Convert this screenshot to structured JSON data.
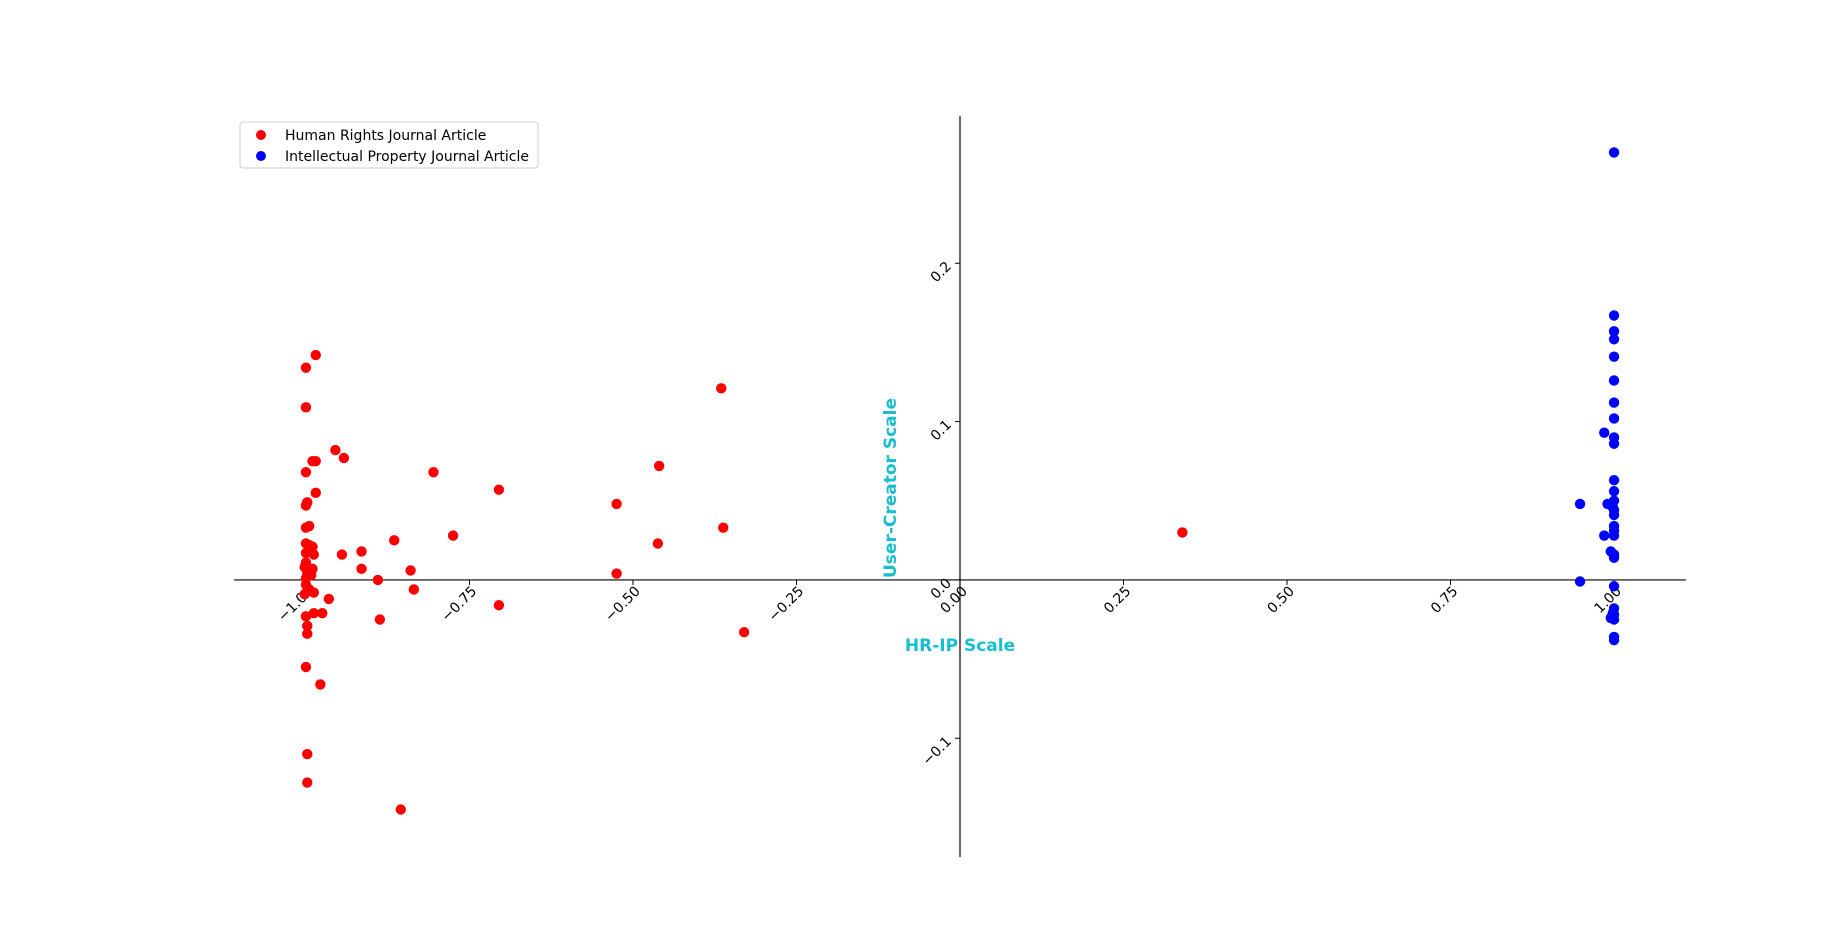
{
  "chart_data": {
    "type": "scatter",
    "title": "",
    "xlabel": "HR-IP Scale",
    "ylabel": "User-Creator Scale",
    "xlim": [
      -1.11,
      1.11
    ],
    "ylim": [
      -0.175,
      0.293
    ],
    "axis_label_color": "#17becf",
    "spines": "centered at origin",
    "grid": false,
    "legend_position": "upper-left",
    "x_ticks": [
      -1.0,
      -0.75,
      -0.5,
      -0.25,
      0.0,
      0.25,
      0.5,
      0.75,
      1.0
    ],
    "x_tick_labels": [
      "−1.00",
      "−0.75",
      "−0.50",
      "−0.25",
      "0.00",
      "0.25",
      "0.50",
      "0.75",
      "1.00"
    ],
    "y_ticks": [
      -0.1,
      0.0,
      0.1,
      0.2
    ],
    "y_tick_labels": [
      "−0.1",
      "0.0",
      "0.1",
      "0.2"
    ],
    "series": [
      {
        "name": "Human Rights Journal Article",
        "color": "#ff0000",
        "points": [
          [
            -1.0,
            0.134
          ],
          [
            -0.985,
            0.142
          ],
          [
            -1.0,
            0.109
          ],
          [
            -0.955,
            0.082
          ],
          [
            -0.942,
            0.077
          ],
          [
            -0.99,
            0.075
          ],
          [
            -0.985,
            0.075
          ],
          [
            -1.0,
            0.068
          ],
          [
            -0.805,
            0.068
          ],
          [
            -0.985,
            0.055
          ],
          [
            -0.705,
            0.057
          ],
          [
            -1.0,
            0.047
          ],
          [
            -0.998,
            0.049
          ],
          [
            -1.0,
            0.033
          ],
          [
            -0.995,
            0.034
          ],
          [
            -0.775,
            0.028
          ],
          [
            -0.865,
            0.025
          ],
          [
            -1.0,
            0.023
          ],
          [
            -0.995,
            0.022
          ],
          [
            -0.99,
            0.021
          ],
          [
            -0.915,
            0.018
          ],
          [
            -1.0,
            0.017
          ],
          [
            -0.945,
            0.016
          ],
          [
            -0.988,
            0.016
          ],
          [
            -1.0,
            0.011
          ],
          [
            -1.002,
            0.008
          ],
          [
            -0.99,
            0.007
          ],
          [
            -0.915,
            0.007
          ],
          [
            -0.84,
            0.006
          ],
          [
            -0.998,
            0.004
          ],
          [
            -0.992,
            0.003
          ],
          [
            -1.0,
            0.001
          ],
          [
            -0.89,
            0.0
          ],
          [
            -1.0,
            -0.003
          ],
          [
            -0.995,
            -0.006
          ],
          [
            -0.988,
            -0.008
          ],
          [
            -1.002,
            -0.009
          ],
          [
            -0.835,
            -0.006
          ],
          [
            -0.965,
            -0.012
          ],
          [
            -0.705,
            -0.016
          ],
          [
            -0.988,
            -0.021
          ],
          [
            -0.975,
            -0.021
          ],
          [
            -1.0,
            -0.023
          ],
          [
            -0.887,
            -0.025
          ],
          [
            -0.998,
            -0.029
          ],
          [
            -0.998,
            -0.034
          ],
          [
            -1.0,
            -0.055
          ],
          [
            -0.978,
            -0.066
          ],
          [
            -0.998,
            -0.11
          ],
          [
            -0.998,
            -0.128
          ],
          [
            -0.855,
            -0.145
          ],
          [
            -0.525,
            0.048
          ],
          [
            -0.46,
            0.072
          ],
          [
            -0.462,
            0.023
          ],
          [
            -0.525,
            0.004
          ],
          [
            -0.365,
            0.121
          ],
          [
            -0.362,
            0.033
          ],
          [
            -0.33,
            -0.033
          ],
          [
            0.34,
            0.03
          ]
        ]
      },
      {
        "name": "Intellectual Property Journal Article",
        "color": "#0000ff",
        "points": [
          [
            1.0,
            0.27
          ],
          [
            1.0,
            0.167
          ],
          [
            1.0,
            0.157
          ],
          [
            1.0,
            0.152
          ],
          [
            1.0,
            0.141
          ],
          [
            1.0,
            0.126
          ],
          [
            1.0,
            0.112
          ],
          [
            1.0,
            0.102
          ],
          [
            0.985,
            0.093
          ],
          [
            1.0,
            0.09
          ],
          [
            1.0,
            0.086
          ],
          [
            1.0,
            0.063
          ],
          [
            1.0,
            0.056
          ],
          [
            1.0,
            0.05
          ],
          [
            0.948,
            0.048
          ],
          [
            0.99,
            0.048
          ],
          [
            0.998,
            0.046
          ],
          [
            1.0,
            0.044
          ],
          [
            1.0,
            0.041
          ],
          [
            1.0,
            0.034
          ],
          [
            1.0,
            0.031
          ],
          [
            1.0,
            0.028
          ],
          [
            0.985,
            0.028
          ],
          [
            0.995,
            0.018
          ],
          [
            1.0,
            0.016
          ],
          [
            1.0,
            0.014
          ],
          [
            0.948,
            -0.001
          ],
          [
            1.0,
            -0.004
          ],
          [
            1.0,
            -0.018
          ],
          [
            0.998,
            -0.021
          ],
          [
            1.0,
            -0.022
          ],
          [
            0.995,
            -0.024
          ],
          [
            1.0,
            -0.025
          ],
          [
            1.0,
            -0.036
          ],
          [
            1.0,
            -0.038
          ]
        ]
      }
    ]
  }
}
